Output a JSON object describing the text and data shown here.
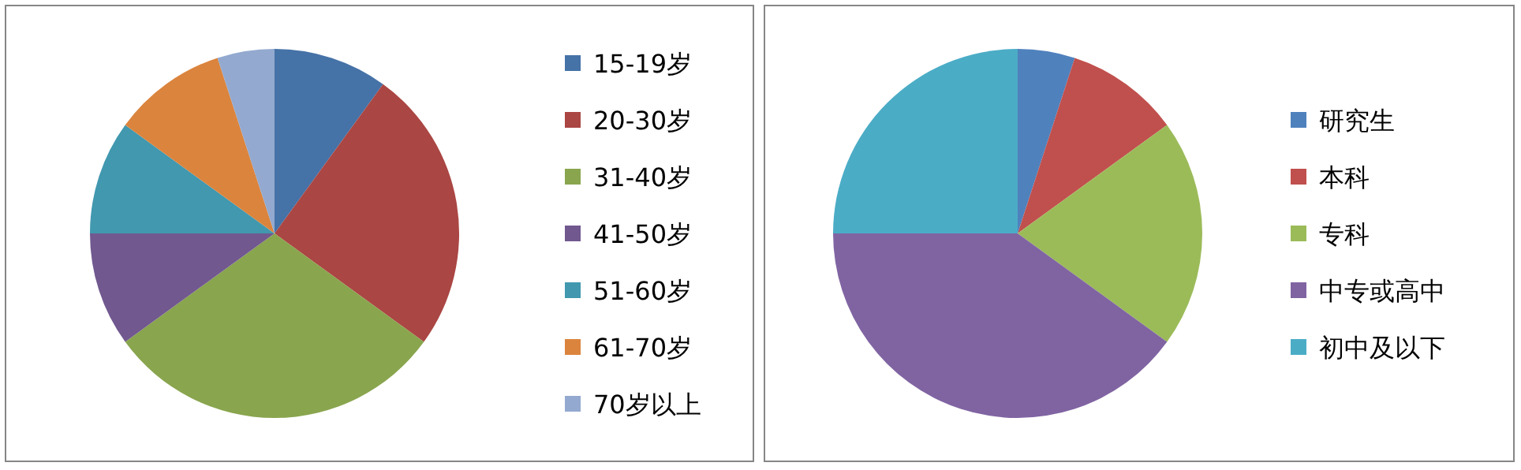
{
  "chart_data": [
    {
      "type": "pie",
      "categories": [
        "15-19岁",
        "20-30岁",
        "31-40岁",
        "41-50岁",
        "51-60岁",
        "61-70岁",
        "70岁以上"
      ],
      "values": [
        10,
        25,
        30,
        10,
        10,
        10,
        5
      ],
      "colors": [
        "#4572a7",
        "#aa4643",
        "#89a54e",
        "#71588f",
        "#4198af",
        "#db843d",
        "#93a9cf"
      ],
      "legend": "right"
    },
    {
      "type": "pie",
      "categories": [
        "研究生",
        "本科",
        "专科",
        "中专或高中",
        "初中及以下"
      ],
      "values": [
        5,
        10,
        20,
        40,
        25
      ],
      "colors": [
        "#4f81bd",
        "#c0504d",
        "#9bbb59",
        "#8064a2",
        "#4bacc6"
      ],
      "legend": "right"
    }
  ]
}
